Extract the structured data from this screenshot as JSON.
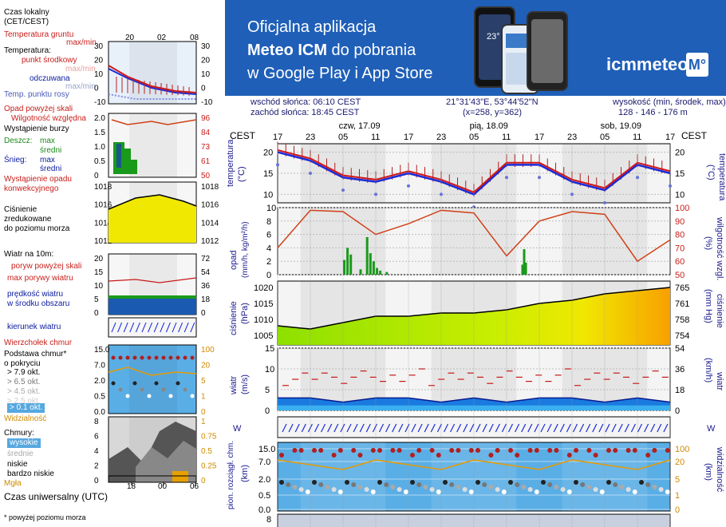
{
  "legend": {
    "time_local": "Czas lokalny\n(CET/CEST)",
    "time_ticks_top": [
      "20",
      "02",
      "08"
    ],
    "ground_temp": "Temperatura gruntu",
    "max_min": "max/min",
    "temperature": "Temperatura:",
    "mid_point": "punkt środkowy",
    "max_min2": "max/min",
    "feels_like": "odczuwana",
    "max_min3": "max/min",
    "dew_point": "Temp. punktu rosy",
    "precip_above": "Opad powyżej skali",
    "humidity": "Wilgotność względna",
    "storm": "Wystąpienie burzy",
    "rain": "Deszcz:",
    "rain_max": "max",
    "rain_mean": "średni",
    "snow": "Śnieg:",
    "snow_max": "max",
    "snow_mean": "średni",
    "precip_occurrence": "Wystąpienie opadu\nkonwekcyjnego",
    "pressure": "Ciśnienie\nzredukowane\ndo poziomu morza",
    "wind_at": "Wiatr na 10m:",
    "gust_above": "poryw powyżej skali",
    "gust_max": "max porywy wiatru",
    "wind_mean": "prędkość wiatru\nw środku obszaru",
    "wind_dir": "kierunek wiatru",
    "cloud_top": "Wierzchołek chmur",
    "cloud_base": "Podstawa chmur*\no pokryciu",
    "okt1": "> 7.9 okt.",
    "okt2": "> 6.5 okt.",
    "okt3": "> 4.5 okt.",
    "okt4": "> 2.5 okt.",
    "okt5": "> 0.1 okt.",
    "visibility": "Widzialność",
    "clouds": "Chmury:",
    "high": "wysokie",
    "mid": "średnie",
    "low": "niskie",
    "very_low": "bardzo niskie",
    "fog": "Mgła",
    "utc": "Czas uniwersalny (UTC)",
    "utc_ticks": [
      "18",
      "00",
      "06"
    ],
    "footnote": "* powyżej poziomu morza"
  },
  "banner": {
    "line1": "Oficjalna aplikacja",
    "line2a": "Meteo ICM",
    "line2b": " do pobrania",
    "line3": "w Google Play i App Store",
    "brand": "icmmeteo",
    "badge": "M°",
    "phone_temp": "23°"
  },
  "info": {
    "sunrise": "wschód słońca: 06:10 CEST",
    "sunset": "zachód słońca: 18:45 CEST",
    "coords": "21°31'43\"E, 53°44'52\"N",
    "grid": "(x=258,  y=362)",
    "height_label": "wysokość (min, środek, max)",
    "height_vals": "128 - 146 - 176 m"
  },
  "axis": {
    "cest": "CEST",
    "days": [
      "czw, 17.09",
      "pią, 18.09",
      "sob, 19.09"
    ],
    "hours": [
      "17",
      "23",
      "05",
      "11",
      "17",
      "23",
      "05",
      "11",
      "17",
      "23",
      "05",
      "11",
      "17"
    ]
  },
  "panels": {
    "temp": {
      "left": "temperatura\n(°C)",
      "right": "(°C)\ntemperatura",
      "ticks": [
        "20",
        "15",
        "10"
      ]
    },
    "precip": {
      "left": "opad\n(mm/h, kg/m²/h)",
      "right": "(%)\nwilgotność wzgl.",
      "ticks_l": [
        "10",
        "8",
        "6",
        "4",
        "2",
        "0"
      ],
      "ticks_r": [
        "100",
        "90",
        "80",
        "70",
        "60",
        "50"
      ]
    },
    "pressure": {
      "left": "ciśnienie\n(hPa)",
      "right": "(mm Hg)\nciśnienie",
      "ticks_l": [
        "1020",
        "1015",
        "1010",
        "1005"
      ],
      "ticks_r": [
        "765",
        "761",
        "758",
        "754"
      ]
    },
    "wind": {
      "left": "wiatr\n(m/s)",
      "right": "(km/h)\nwiatr",
      "ticks_l": [
        "15",
        "10",
        "5",
        "0"
      ],
      "ticks_r": [
        "54",
        "36",
        "18",
        "0"
      ]
    },
    "cloud": {
      "left": "pion. rozciągł. chm.\n(km)",
      "right": "(km)\nwidzialność",
      "ticks_l": [
        "15.0",
        "7.0",
        "2.0",
        "0.5",
        "0.0"
      ],
      "ticks_r": [
        "100",
        "20",
        "5",
        "1",
        "0"
      ]
    },
    "bottom_tick": "8"
  },
  "legend_ticks": {
    "temp": [
      "30",
      "20",
      "10",
      "0",
      "-10"
    ],
    "hum": [
      "2.0",
      "1.5",
      "1.0",
      "0.5",
      "0"
    ],
    "hum_r": [
      "96",
      "84",
      "73",
      "61",
      "50"
    ],
    "press": [
      "1018",
      "1016",
      "1014",
      "1012"
    ],
    "wind": [
      "20",
      "15",
      "10",
      "5",
      "0"
    ],
    "wind_r": [
      "72",
      "54",
      "36",
      "18",
      "0"
    ],
    "cloud": [
      "15.0",
      "7.0",
      "2.0",
      "0.5",
      "0.0"
    ],
    "cloud_r": [
      "100",
      "20",
      "5",
      "1",
      "0"
    ],
    "cl": [
      "8",
      "6",
      "4",
      "2",
      "0"
    ],
    "cl_r": [
      "1",
      "0.75",
      "0.5",
      "0.25",
      "0"
    ]
  },
  "chart_data": {
    "type": "line",
    "x": [
      "17",
      "23",
      "05",
      "11",
      "17",
      "23",
      "05",
      "11",
      "17",
      "23",
      "05",
      "11",
      "17"
    ],
    "series": [
      {
        "name": "temperatura",
        "values": [
          20,
          18,
          14,
          13,
          15,
          13,
          10,
          17,
          17,
          13,
          11,
          17,
          15
        ]
      },
      {
        "name": "ciśnienie",
        "values": [
          1008,
          1007,
          1009,
          1011,
          1011,
          1012,
          1012,
          1013,
          1015,
          1016,
          1018,
          1019,
          1020
        ]
      },
      {
        "name": "wilgotność wzgl.",
        "values": [
          70,
          98,
          97,
          80,
          88,
          98,
          96,
          64,
          90,
          97,
          95,
          60,
          76
        ]
      },
      {
        "name": "wiatr",
        "values": [
          3,
          3,
          2,
          3,
          3,
          2,
          3,
          2,
          3,
          3,
          2,
          3,
          2
        ]
      }
    ],
    "colors": {
      "temp": "#d01818",
      "press_fill": "#c8e000",
      "precip": "#1a9a1a",
      "wind": "#0a4ac8",
      "bg": "#dfe4f2"
    }
  }
}
